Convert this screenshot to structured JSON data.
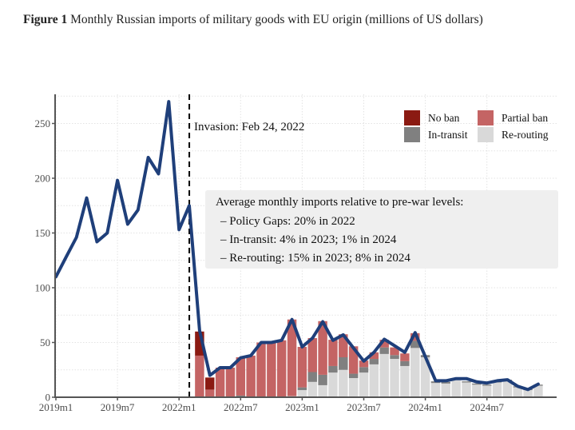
{
  "caption": {
    "label": "Figure 1",
    "text": " Monthly Russian imports of military goods with EU origin (millions of US dollars)"
  },
  "chart_data": {
    "type": "bar+line",
    "title": "Monthly Russian imports of military goods with EU origin (millions of US dollars)",
    "xlabel": "",
    "ylabel": "",
    "ylim": [
      0,
      275
    ],
    "yticks": [
      0,
      50,
      100,
      150,
      200,
      250
    ],
    "grid": true,
    "legend_position": "top-right",
    "x_tick_labels": [
      {
        "index": 0,
        "label": "2019m1"
      },
      {
        "index": 6,
        "label": "2019m7"
      },
      {
        "index": 12,
        "label": "2022m1"
      },
      {
        "index": 18,
        "label": "2022m7"
      },
      {
        "index": 24,
        "label": "2023m1"
      },
      {
        "index": 30,
        "label": "2023m7"
      },
      {
        "index": 36,
        "label": "2024m1"
      },
      {
        "index": 42,
        "label": "2024m7"
      }
    ],
    "periods": [
      "2019m1",
      "2019m2",
      "2019m3",
      "2019m4",
      "2019m5",
      "2019m6",
      "2019m7",
      "2019m8",
      "2019m9",
      "2019m10",
      "2019m11",
      "2019m12",
      "2022m1",
      "2022m2",
      "2022m3",
      "2022m4",
      "2022m5",
      "2022m6",
      "2022m7",
      "2022m8",
      "2022m9",
      "2022m10",
      "2022m11",
      "2022m12",
      "2023m1",
      "2023m2",
      "2023m3",
      "2023m4",
      "2023m5",
      "2023m6",
      "2023m7",
      "2023m8",
      "2023m9",
      "2023m10",
      "2023m11",
      "2023m12",
      "2024m1",
      "2024m2",
      "2024m3",
      "2024m4",
      "2024m5",
      "2024m6",
      "2024m7",
      "2024m8",
      "2024m9",
      "2024m10",
      "2024m11",
      "2024m12"
    ],
    "line_series": {
      "name": "Total imports",
      "color": "#1f3f7a",
      "values": [
        110,
        128,
        146,
        182,
        142,
        150,
        198,
        158,
        171,
        219,
        204,
        270,
        153,
        175,
        61,
        20,
        27,
        27,
        36,
        38,
        50,
        50,
        52,
        71,
        46,
        54,
        69,
        52,
        57,
        45,
        33,
        41,
        53,
        47,
        41,
        59,
        37,
        15,
        15,
        17,
        17,
        14,
        13,
        15,
        16,
        10,
        7,
        12
      ]
    },
    "bar_start_index": 14,
    "bar_series": [
      {
        "name": "No ban",
        "color": "#8b1a12",
        "values": [
          22,
          11,
          0,
          0,
          0,
          0,
          0,
          0,
          0,
          0,
          0,
          0,
          0,
          0,
          0,
          0,
          0,
          0,
          0,
          0,
          0,
          0,
          0,
          0,
          0,
          0,
          0,
          0,
          0,
          0,
          0,
          0,
          0,
          0
        ]
      },
      {
        "name": "Partial ban",
        "color": "#c46464",
        "values": [
          38,
          7,
          27,
          27,
          35,
          38,
          50,
          50,
          52,
          70,
          37,
          31,
          49,
          24,
          21,
          25,
          6,
          6,
          7,
          7,
          7,
          7,
          0,
          0,
          0,
          0,
          0,
          0,
          0,
          0,
          0,
          0,
          0,
          0
        ]
      },
      {
        "name": "In-transit",
        "color": "#808080",
        "values": [
          0,
          0,
          0,
          0,
          1.5,
          0,
          0,
          0,
          0,
          0,
          2.5,
          9,
          9.5,
          6,
          11.5,
          4,
          5,
          5,
          6,
          3.5,
          4.5,
          6.5,
          2,
          1.5,
          1.5,
          1,
          1,
          1,
          1,
          1,
          1,
          1,
          1,
          1
        ]
      },
      {
        "name": "Re-routing",
        "color": "#d9d9d9",
        "values": [
          0,
          0,
          0,
          0,
          0,
          0,
          0,
          0,
          0,
          1,
          6.5,
          14,
          11,
          22.5,
          25,
          17.5,
          22.5,
          30,
          39.5,
          35,
          28.5,
          45,
          36.5,
          13,
          12.5,
          16.5,
          13.5,
          11.5,
          10.5,
          13.5,
          15,
          9,
          6.5,
          10.5
        ]
      }
    ],
    "invasion_line": {
      "index": 13.0,
      "label": "Invasion: Feb 24, 2022"
    },
    "annotation_box": {
      "title": "Average monthly imports relative to pre-war levels:",
      "lines": [
        "– Policy Gaps: 20% in 2022",
        "– In-transit: 4% in 2023; 1% in 2024",
        "– Re-routing: 15% in 2023; 8% in 2024"
      ]
    },
    "legend": [
      {
        "label": "No ban",
        "color": "#8b1a12"
      },
      {
        "label": "Partial ban",
        "color": "#c46464"
      },
      {
        "label": "In-transit",
        "color": "#808080"
      },
      {
        "label": "Re-routing",
        "color": "#d9d9d9"
      }
    ]
  }
}
